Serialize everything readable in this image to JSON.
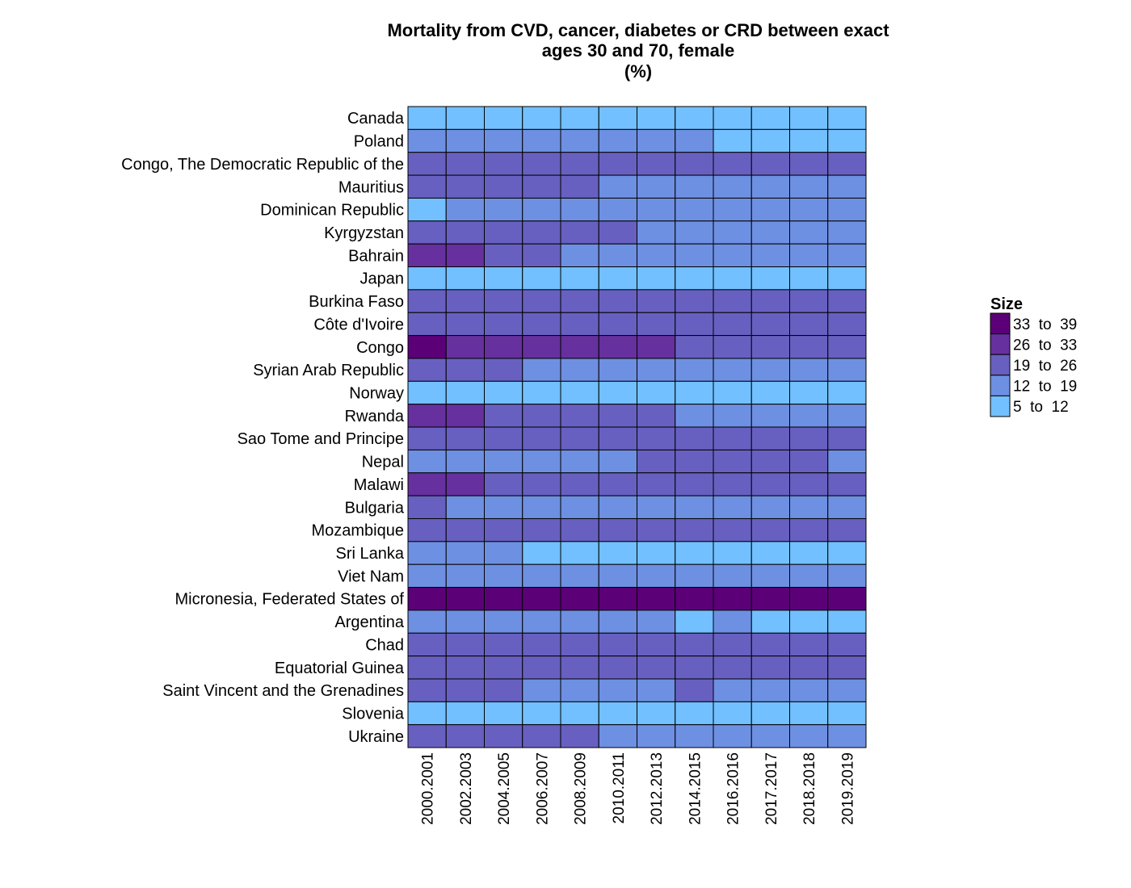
{
  "chart_data": {
    "type": "heatmap",
    "title": [
      "Mortality from CVD, cancer, diabetes or CRD between exact",
      "ages 30 and 70, female",
      "(%)"
    ],
    "rows": [
      "Canada",
      "Poland",
      "Congo, The Democratic Republic of the",
      "Mauritius",
      "Dominican Republic",
      "Kyrgyzstan",
      "Bahrain",
      "Japan",
      "Burkina Faso",
      "Côte d'Ivoire",
      "Congo",
      "Syrian Arab Republic",
      "Norway",
      "Rwanda",
      "Sao Tome and Principe",
      "Nepal",
      "Malawi",
      "Bulgaria",
      "Mozambique",
      "Sri Lanka",
      "Viet Nam",
      "Micronesia, Federated States of",
      "Argentina",
      "Chad",
      "Equatorial Guinea",
      "Saint Vincent and the Grenadines",
      "Slovenia",
      "Ukraine"
    ],
    "columns": [
      "2000.2001",
      "2002.2003",
      "2004.2005",
      "2006.2007",
      "2008.2009",
      "2010.2011",
      "2012.2013",
      "2014.2015",
      "2016.2016",
      "2017.2017",
      "2018.2018",
      "2019.2019"
    ],
    "legend": {
      "title": "Size",
      "position": "right",
      "bins": [
        {
          "label": "33  to  39",
          "color": "#5c0078"
        },
        {
          "label": "26  to  33",
          "color": "#66309e"
        },
        {
          "label": "19  to  26",
          "color": "#6860c0"
        },
        {
          "label": "12  to  19",
          "color": "#6e90e2"
        },
        {
          "label": "5  to  12",
          "color": "#72c0ff"
        }
      ]
    },
    "bin_matrix": [
      [
        4,
        4,
        4,
        4,
        4,
        4,
        4,
        4,
        4,
        4,
        4,
        4
      ],
      [
        3,
        3,
        3,
        3,
        3,
        3,
        3,
        3,
        4,
        4,
        4,
        4
      ],
      [
        2,
        2,
        2,
        2,
        2,
        2,
        2,
        2,
        2,
        2,
        2,
        2
      ],
      [
        2,
        2,
        2,
        2,
        2,
        3,
        3,
        3,
        3,
        3,
        3,
        3
      ],
      [
        4,
        3,
        3,
        3,
        3,
        3,
        3,
        3,
        3,
        3,
        3,
        3
      ],
      [
        2,
        2,
        2,
        2,
        2,
        2,
        3,
        3,
        3,
        3,
        3,
        3
      ],
      [
        1,
        1,
        2,
        2,
        3,
        3,
        3,
        3,
        3,
        3,
        3,
        3
      ],
      [
        4,
        4,
        4,
        4,
        4,
        4,
        4,
        4,
        4,
        4,
        4,
        4
      ],
      [
        2,
        2,
        2,
        2,
        2,
        2,
        2,
        2,
        2,
        2,
        2,
        2
      ],
      [
        2,
        2,
        2,
        2,
        2,
        2,
        2,
        2,
        2,
        2,
        2,
        2
      ],
      [
        0,
        1,
        1,
        1,
        1,
        1,
        1,
        2,
        2,
        2,
        2,
        2
      ],
      [
        2,
        2,
        2,
        3,
        3,
        3,
        3,
        3,
        3,
        3,
        3,
        3
      ],
      [
        4,
        4,
        4,
        4,
        4,
        4,
        4,
        4,
        4,
        4,
        4,
        4
      ],
      [
        1,
        1,
        2,
        2,
        2,
        2,
        2,
        3,
        3,
        3,
        3,
        3
      ],
      [
        2,
        2,
        2,
        2,
        2,
        2,
        2,
        2,
        2,
        2,
        2,
        2
      ],
      [
        3,
        3,
        3,
        3,
        3,
        3,
        2,
        2,
        2,
        2,
        2,
        3
      ],
      [
        1,
        1,
        2,
        2,
        2,
        2,
        2,
        2,
        2,
        2,
        2,
        2
      ],
      [
        2,
        3,
        3,
        3,
        3,
        3,
        3,
        3,
        3,
        3,
        3,
        3
      ],
      [
        2,
        2,
        2,
        2,
        2,
        2,
        2,
        2,
        2,
        2,
        2,
        2
      ],
      [
        3,
        3,
        3,
        4,
        4,
        4,
        4,
        4,
        4,
        4,
        4,
        4
      ],
      [
        3,
        3,
        3,
        3,
        3,
        3,
        3,
        3,
        3,
        3,
        3,
        3
      ],
      [
        0,
        0,
        0,
        0,
        0,
        0,
        0,
        0,
        0,
        0,
        0,
        0
      ],
      [
        3,
        3,
        3,
        3,
        3,
        3,
        3,
        4,
        3,
        4,
        4,
        4
      ],
      [
        2,
        2,
        2,
        2,
        2,
        2,
        2,
        2,
        2,
        2,
        2,
        2
      ],
      [
        2,
        2,
        2,
        2,
        2,
        2,
        2,
        2,
        2,
        2,
        2,
        2
      ],
      [
        2,
        2,
        2,
        3,
        3,
        3,
        3,
        2,
        3,
        3,
        3,
        3
      ],
      [
        4,
        4,
        4,
        4,
        4,
        4,
        4,
        4,
        4,
        4,
        4,
        4
      ],
      [
        2,
        2,
        2,
        2,
        2,
        3,
        3,
        3,
        3,
        3,
        3,
        3
      ]
    ]
  }
}
